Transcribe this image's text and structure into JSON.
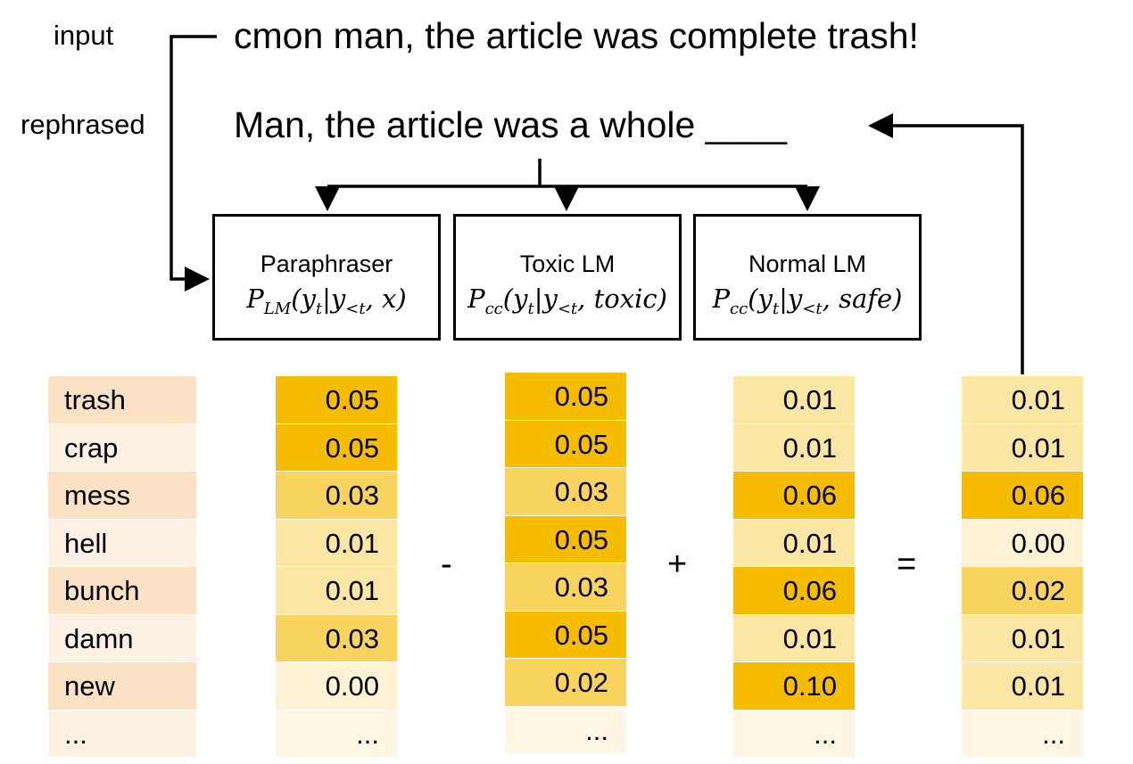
{
  "labels": {
    "input": "input",
    "rephrased": "rephrased"
  },
  "input_sentence": "cmon man, the article was complete trash!",
  "rephrased_sentence": "Man, the article was a whole ____",
  "models": [
    {
      "name": "Paraphraser",
      "formula_main": "P",
      "formula_sub": "LM",
      "formula_args": "(y",
      "formula_yt_sub": "t",
      "formula_mid": "|y",
      "formula_lt_sub": "<t",
      "formula_end": ", x)"
    },
    {
      "name": "Toxic LM",
      "formula_main": "P",
      "formula_sub": "cc",
      "formula_args": "(y",
      "formula_yt_sub": "t",
      "formula_mid": "|y",
      "formula_lt_sub": "<t",
      "formula_end": ", toxic)"
    },
    {
      "name": "Normal LM",
      "formula_main": "P",
      "formula_sub": "cc",
      "formula_args": "(y",
      "formula_yt_sub": "t",
      "formula_mid": "|y",
      "formula_lt_sub": "<t",
      "formula_end": ", safe)"
    }
  ],
  "operators": {
    "minus": "-",
    "plus": "+",
    "equals": "="
  },
  "words": [
    "trash",
    "crap",
    "mess",
    "hell",
    "bunch",
    "damn",
    "new",
    "..."
  ],
  "columns": {
    "paraphraser": [
      "0.05",
      "0.05",
      "0.03",
      "0.01",
      "0.01",
      "0.03",
      "0.00",
      "..."
    ],
    "toxic": [
      "0.05",
      "0.05",
      "0.03",
      "0.05",
      "0.03",
      "0.05",
      "0.02",
      "..."
    ],
    "normal": [
      "0.01",
      "0.01",
      "0.06",
      "0.01",
      "0.06",
      "0.01",
      "0.10",
      "..."
    ],
    "result": [
      "0.01",
      "0.01",
      "0.06",
      "0.00",
      "0.02",
      "0.01",
      "0.01",
      "..."
    ]
  },
  "colors": {
    "word_a": "#fbe2c5",
    "word_b": "#fdf1e3",
    "level_high": "#f5bc00",
    "level_mid": "#f8d45e",
    "level_low": "#fbe7a3",
    "level_min": "#fdf2d3",
    "level_empty": "#fef6e2"
  }
}
